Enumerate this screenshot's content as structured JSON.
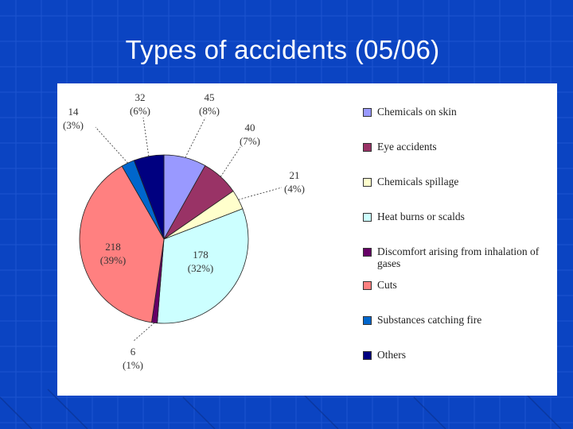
{
  "slide": {
    "title": "Types of accidents (05/06)"
  },
  "chart_data": {
    "type": "pie",
    "title": "",
    "legend_position": "right",
    "slices": [
      {
        "label": "Chemicals on skin",
        "value": 45,
        "percent_label": "(8%)",
        "color": "#9999ff"
      },
      {
        "label": "Eye accidents",
        "value": 40,
        "percent_label": "(7%)",
        "color": "#993366"
      },
      {
        "label": "Chemicals spillage",
        "value": 21,
        "percent_label": "(4%)",
        "color": "#ffffcc"
      },
      {
        "label": "Heat burns or scalds",
        "value": 178,
        "percent_label": "(32%)",
        "color": "#ccffff"
      },
      {
        "label": "Discomfort arising from inhalation of gases",
        "value": 6,
        "percent_label": "(1%)",
        "color": "#660066"
      },
      {
        "label": "Cuts",
        "value": 218,
        "percent_label": "(39%)",
        "color": "#ff8080"
      },
      {
        "label": "Substances catching fire",
        "value": 14,
        "percent_label": "(3%)",
        "color": "#0066cc"
      },
      {
        "label": "Others",
        "value": 32,
        "percent_label": "(6%)",
        "color": "#000080"
      }
    ]
  },
  "colors": {
    "slide_background": "#0b44c2",
    "grid_lines": "#1f57d6",
    "title_text": "#ffffff"
  }
}
